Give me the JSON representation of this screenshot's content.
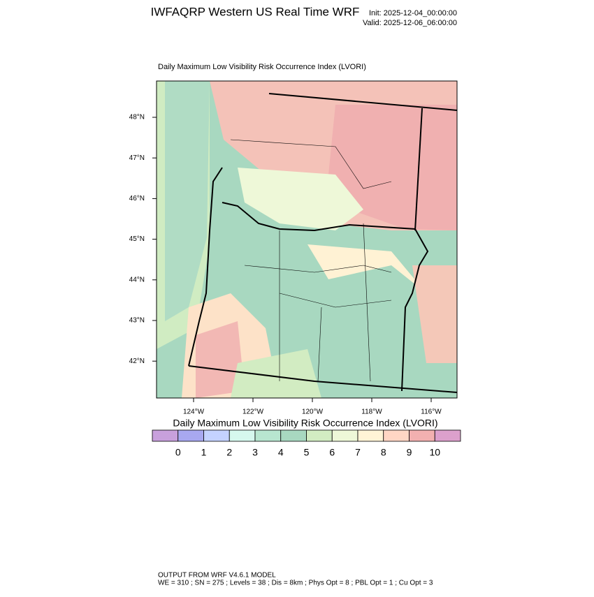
{
  "header": {
    "title": "IWFAQRP Western US Real Time WRF",
    "init": "Init: 2025-12-04_00:00:00",
    "valid": "Valid: 2025-12-06_06:00:00"
  },
  "map": {
    "subtitle": "Daily Maximum Low Visibility Risk Occurrence Index   (LVORI)",
    "lat_labels": [
      "48°N",
      "47°N",
      "46°N",
      "45°N",
      "44°N",
      "43°N",
      "42°N"
    ],
    "lon_labels": [
      "124°W",
      "122°W",
      "120°W",
      "118°W",
      "116°W"
    ]
  },
  "colorbar": {
    "title": "Daily Maximum Low Visibility Risk Occurrence Index  (LVORI)",
    "ticks": [
      0,
      1,
      2,
      3,
      4,
      5,
      6,
      7,
      8,
      9,
      10
    ],
    "colors": [
      "#c8a0dc",
      "#a8a8f0",
      "#c4d2ff",
      "#d6f8ee",
      "#b8e6d0",
      "#a8d8c0",
      "#d2ecc2",
      "#eef8d8",
      "#fff4d6",
      "#ffd6c4",
      "#f2b0b0",
      "#dca0cc"
    ]
  },
  "footer": {
    "line1": "OUTPUT FROM WRF V4.6.1 MODEL",
    "line2": "WE = 310 ; SN = 275 ; Levels = 38 ; Dis = 8km ; Phys Opt = 8 ; PBL Opt = 1 ; Cu Opt = 3"
  }
}
